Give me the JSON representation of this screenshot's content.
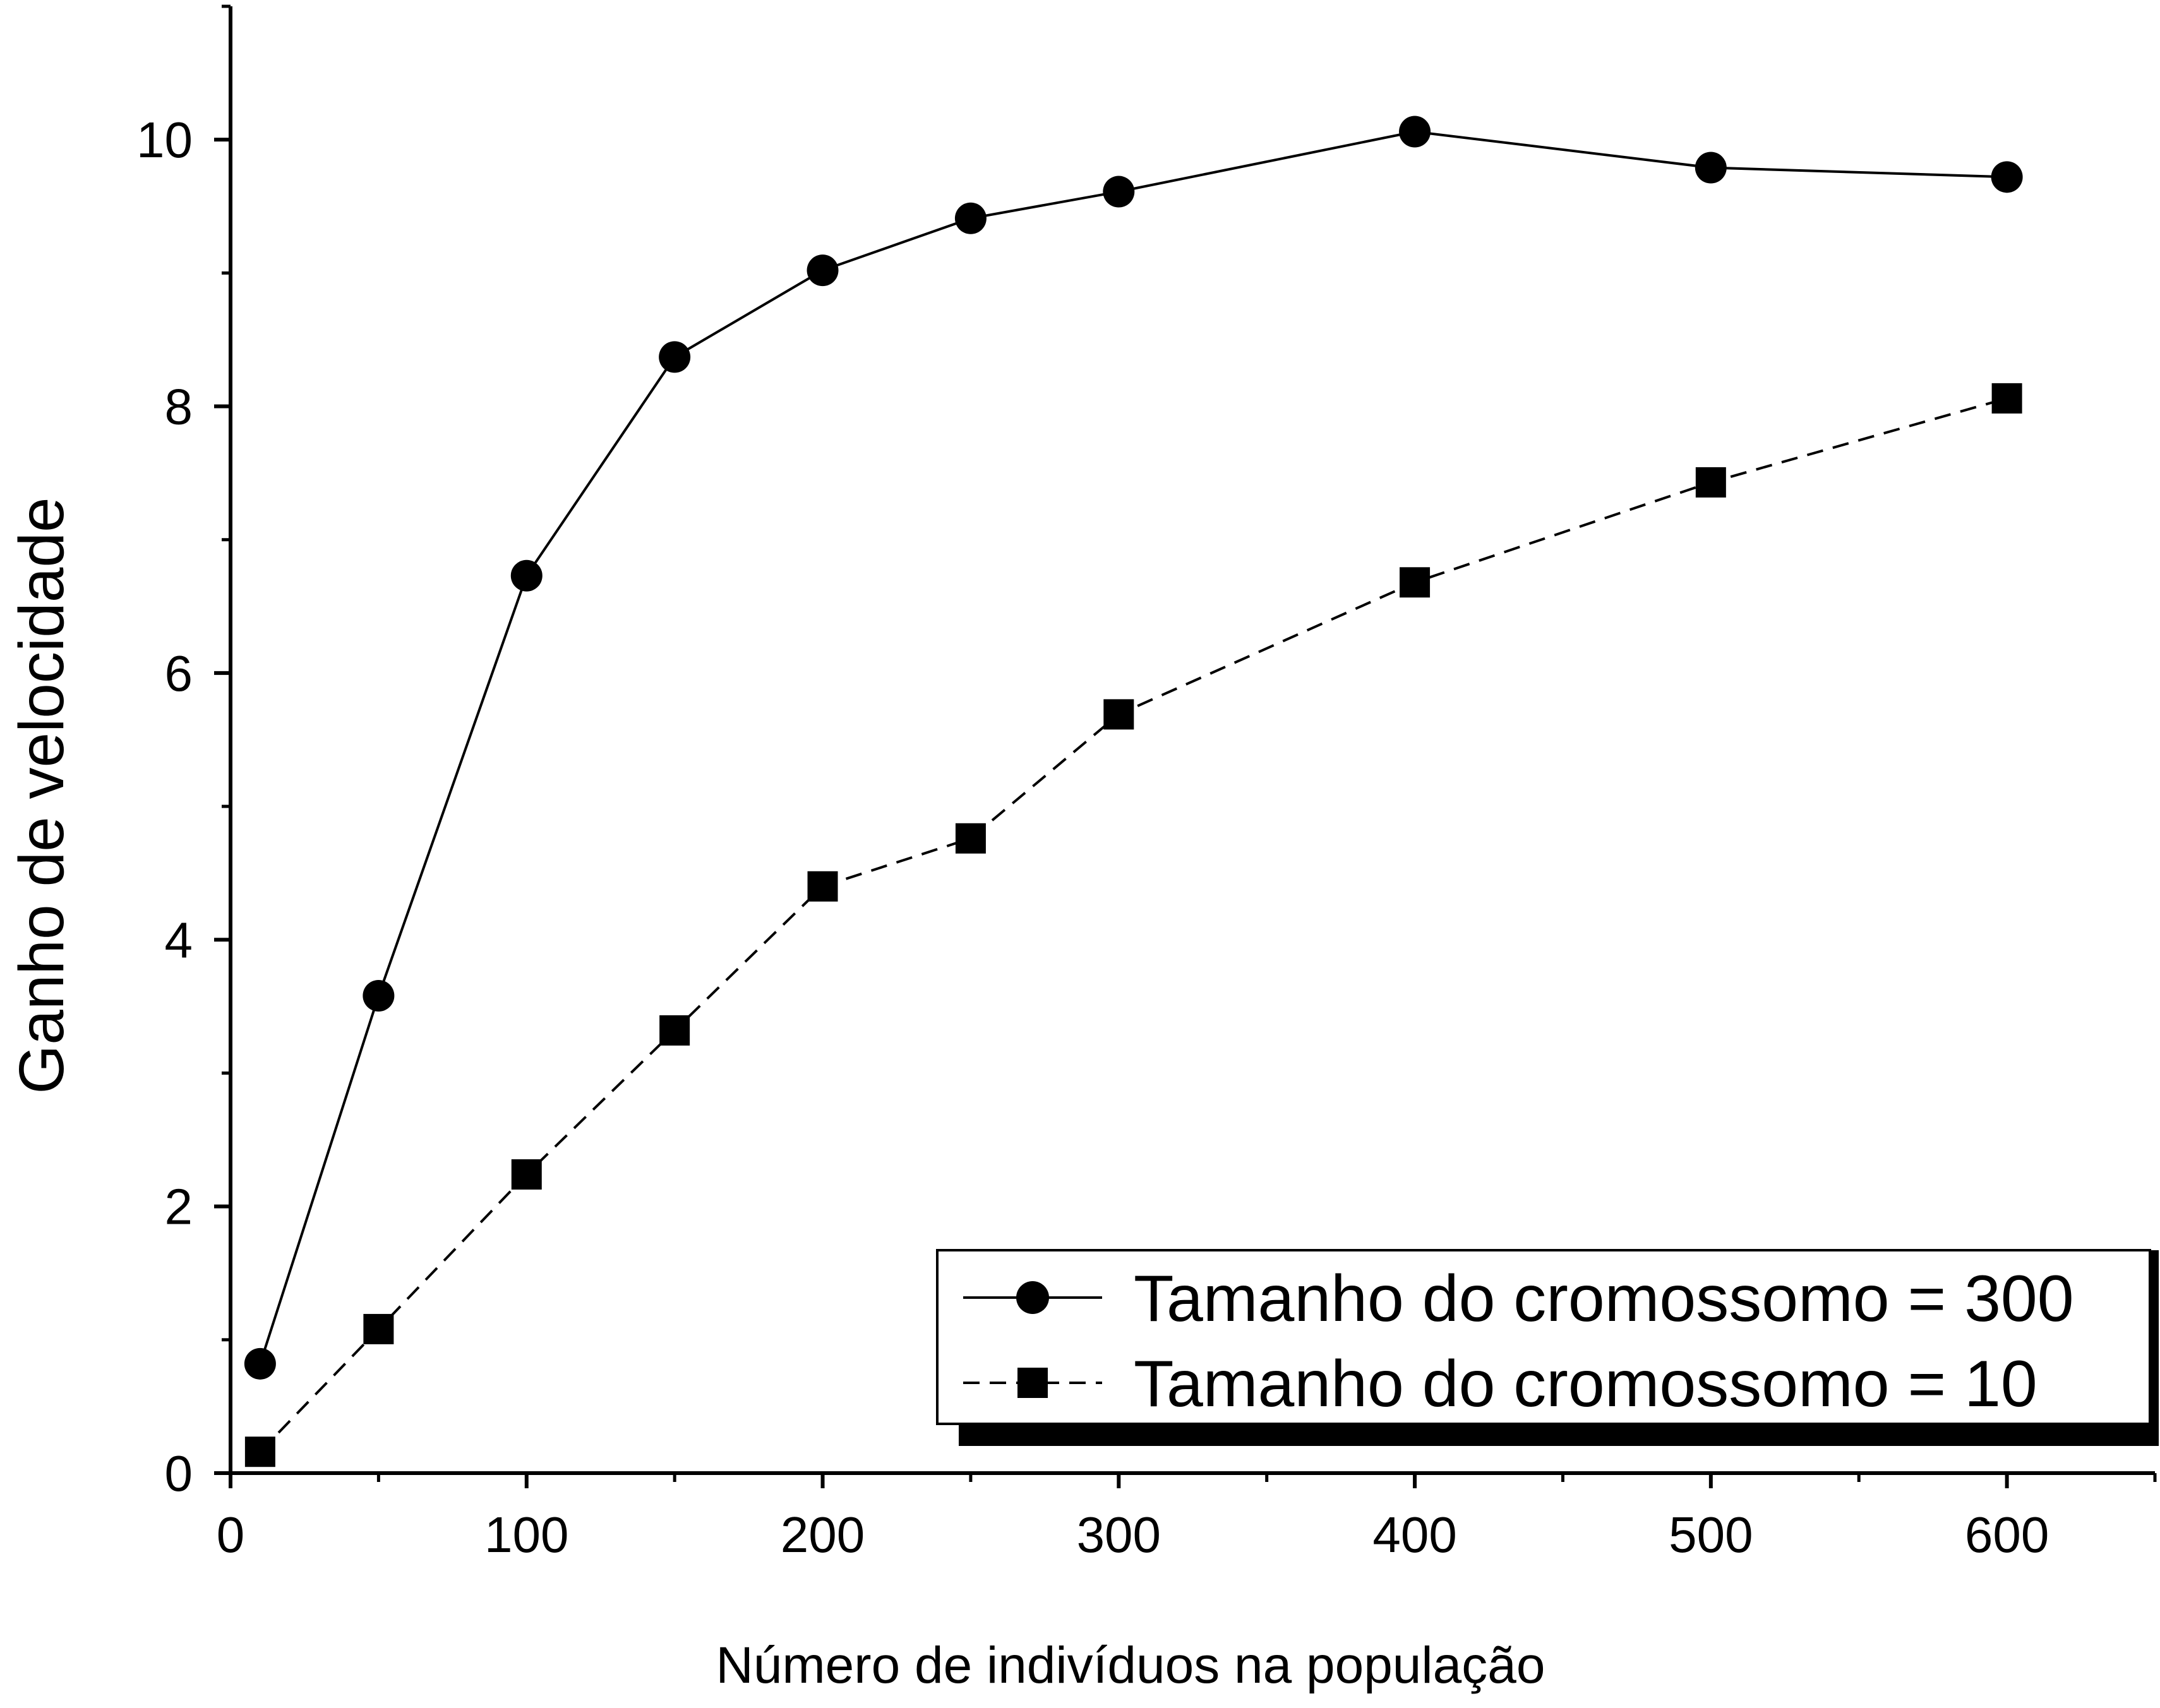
{
  "chart_data": {
    "type": "line",
    "title": "",
    "xlabel": "Número de indivíduos na população",
    "ylabel": "Ganho de velocidade",
    "xlim": [
      0,
      650
    ],
    "ylim": [
      0,
      11
    ],
    "x_ticks": [
      0,
      100,
      200,
      300,
      400,
      500,
      600
    ],
    "y_ticks": [
      0,
      2,
      4,
      6,
      8,
      10
    ],
    "x_tick_labels": [
      "0",
      "100",
      "200",
      "300",
      "400",
      "500",
      "600"
    ],
    "y_tick_labels": [
      "0",
      "2",
      "4",
      "6",
      "8",
      "10"
    ],
    "grid": false,
    "legend_position": "bottom-right",
    "series": [
      {
        "name": "Tamanho do cromossomo = 300",
        "marker": "circle",
        "line_style": "solid",
        "color": "#000000",
        "x": [
          10,
          50,
          100,
          150,
          200,
          250,
          300,
          400,
          500,
          600
        ],
        "y": [
          0.82,
          3.58,
          6.73,
          8.37,
          9.02,
          9.41,
          9.61,
          10.06,
          9.79,
          9.72
        ]
      },
      {
        "name": "Tamanho do cromossomo = 10",
        "marker": "square",
        "line_style": "dashed",
        "color": "#000000",
        "x": [
          10,
          50,
          100,
          150,
          200,
          250,
          300,
          400,
          500,
          600
        ],
        "y": [
          0.16,
          1.08,
          2.24,
          3.32,
          4.4,
          4.76,
          5.69,
          6.68,
          7.43,
          8.06
        ]
      }
    ]
  }
}
